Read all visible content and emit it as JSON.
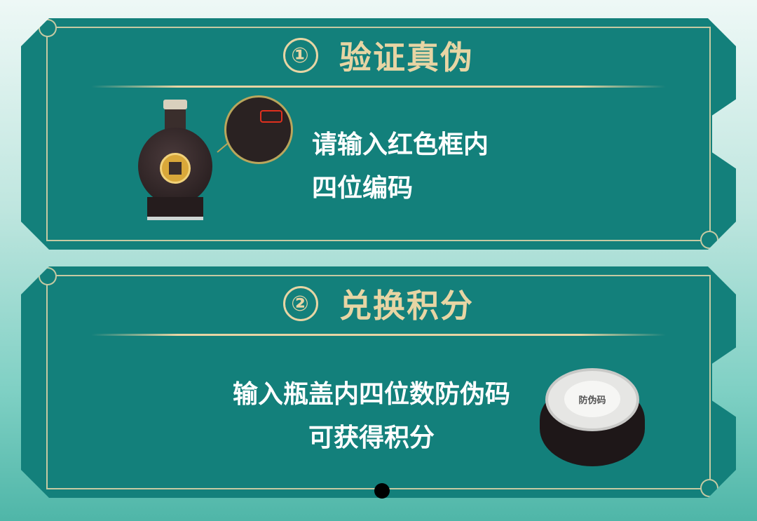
{
  "step1": {
    "number": "①",
    "title": "验证真伪",
    "lines": [
      "请输入红色框内",
      "四位编码"
    ]
  },
  "step2": {
    "number": "②",
    "title": "兑换积分",
    "lines": [
      "输入瓶盖内四位数防伪码",
      "可获得积分"
    ]
  },
  "illustrations": {
    "bottle_icon": "bottle-icon",
    "magnifier_icon": "magnifier-icon",
    "cap_icon": "bottle-cap-icon",
    "cap_text": "防伪码"
  },
  "colors": {
    "card": "#13807b",
    "gold": "#e7d5a4",
    "highlight_red": "#e0301e"
  }
}
